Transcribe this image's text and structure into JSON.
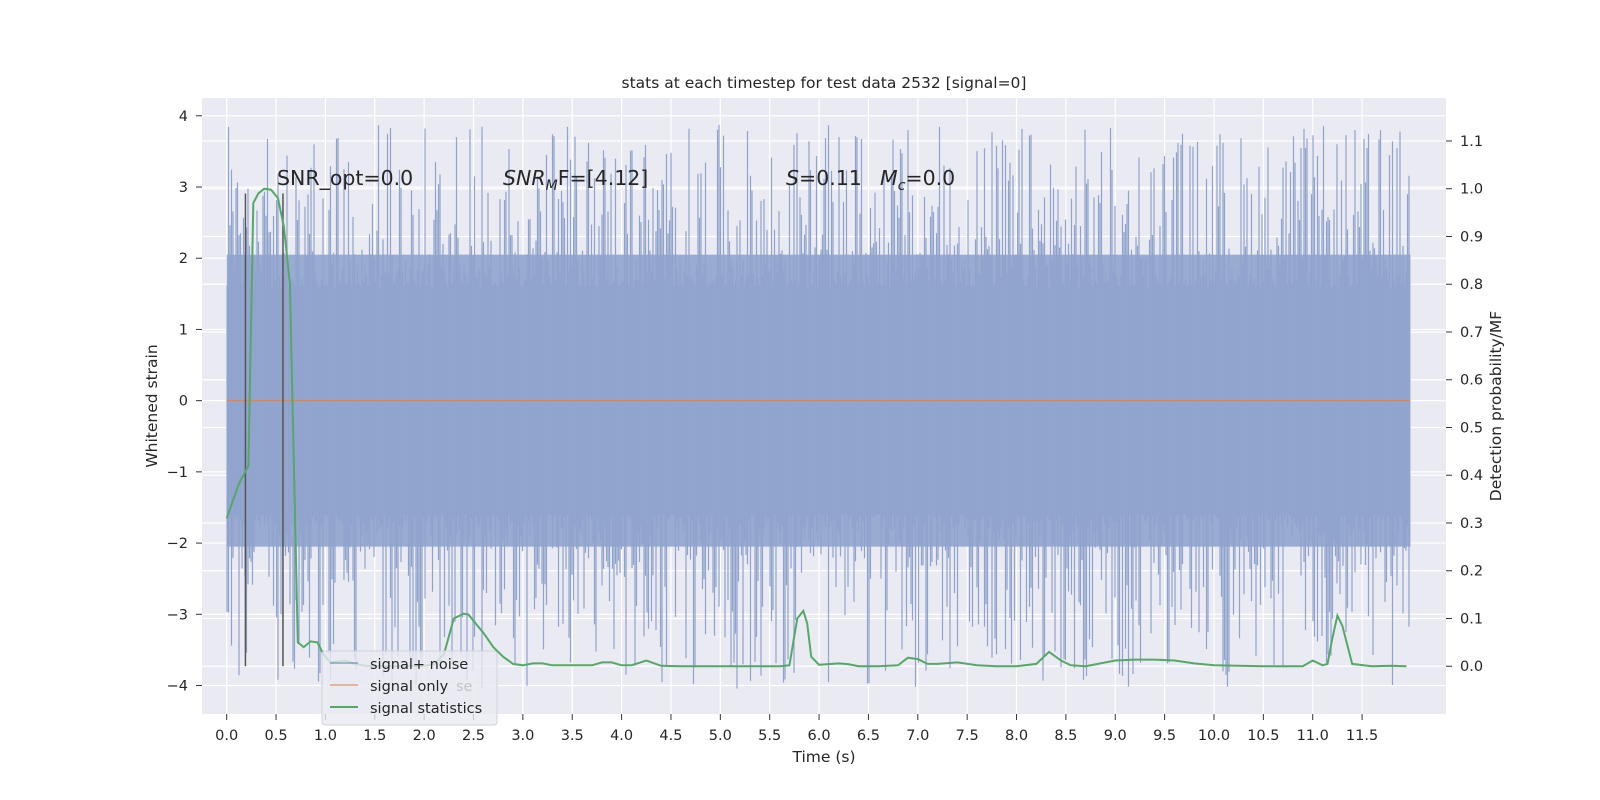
{
  "chart_data": {
    "type": "line",
    "title": "stats at each timestep for test data 2532 [signal=0]",
    "xlabel": "Time (s)",
    "ylabel_left": "Whitened strain",
    "ylabel_right": "Detection probability/MF",
    "xlim": [
      -0.25,
      12.35
    ],
    "ylim_left": [
      -4.4,
      4.25
    ],
    "ylim_right": [
      -0.1,
      1.19
    ],
    "x_ticks": [
      "0.0",
      "0.5",
      "1.0",
      "1.5",
      "2.0",
      "2.5",
      "3.0",
      "3.5",
      "4.0",
      "4.5",
      "5.0",
      "5.5",
      "6.0",
      "6.5",
      "7.0",
      "7.5",
      "8.0",
      "8.5",
      "9.0",
      "9.5",
      "10.0",
      "10.5",
      "11.0",
      "11.5"
    ],
    "x_tick_values": [
      0,
      0.5,
      1,
      1.5,
      2,
      2.5,
      3,
      3.5,
      4,
      4.5,
      5,
      5.5,
      6,
      6.5,
      7,
      7.5,
      8,
      8.5,
      9,
      9.5,
      10,
      10.5,
      11,
      11.5
    ],
    "y_ticks_left": [
      -4,
      -3,
      -2,
      -1,
      0,
      1,
      2,
      3,
      4
    ],
    "y_ticks_right": [
      "0.0",
      "0.1",
      "0.2",
      "0.3",
      "0.4",
      "0.5",
      "0.6",
      "0.7",
      "0.8",
      "0.9",
      "1.0",
      "1.1"
    ],
    "y_tick_values_right": [
      0,
      0.1,
      0.2,
      0.3,
      0.4,
      0.5,
      0.6,
      0.7,
      0.8,
      0.9,
      1.0,
      1.1
    ],
    "grid": true,
    "background": "#eaeaf2",
    "legend_position": "lower-left",
    "legend": [
      {
        "label": "signal+ noise",
        "color": "#4c72b0"
      },
      {
        "label": "signal only",
        "color": "#dd8452"
      },
      {
        "label": "signal statistics",
        "color": "#55a868"
      }
    ],
    "legend_ghost_text": "se",
    "annotations": {
      "snr_opt": "SNR_opt=0.0",
      "snr_mf_base": "SNR",
      "snr_mf_sub": "M",
      "snr_mf_rest": "F=[4.12]",
      "s_label": "S",
      "s_value": "=0.11",
      "mc_label": "M",
      "mc_sub": "c",
      "mc_value": "=0.0"
    },
    "vertical_markers_x": [
      0.19,
      0.57
    ],
    "series": [
      {
        "name": "signal+ noise",
        "kind": "noise",
        "x_range": [
          0,
          11.99
        ],
        "body_range": [
          -2.05,
          2.05
        ],
        "peak_max": 3.88,
        "peak_min": -4.07,
        "color": "#4c72b0"
      },
      {
        "name": "signal only",
        "kind": "line",
        "x": [
          0,
          11.99
        ],
        "y": [
          0,
          0
        ],
        "color": "#dd8452"
      },
      {
        "name": "signal statistics",
        "kind": "line",
        "axis": "right",
        "color": "#55a868",
        "x": [
          0,
          0.12,
          0.22,
          0.27,
          0.32,
          0.38,
          0.45,
          0.52,
          0.58,
          0.64,
          0.72,
          0.78,
          0.85,
          0.92,
          0.98,
          1.05,
          1.12,
          1.2,
          1.3,
          1.4,
          1.5,
          1.75,
          2.0,
          2.1,
          2.2,
          2.3,
          2.4,
          2.45,
          2.5,
          2.6,
          2.7,
          2.8,
          2.9,
          3.0,
          3.1,
          3.2,
          3.3,
          3.5,
          3.7,
          3.8,
          3.9,
          4.0,
          4.1,
          4.25,
          4.4,
          4.6,
          4.8,
          5.0,
          5.2,
          5.4,
          5.5,
          5.6,
          5.7,
          5.78,
          5.84,
          5.88,
          5.92,
          6.0,
          6.2,
          6.3,
          6.4,
          6.6,
          6.8,
          6.9,
          7.0,
          7.1,
          7.2,
          7.4,
          7.6,
          7.8,
          8.0,
          8.2,
          8.33,
          8.45,
          8.55,
          8.7,
          9.0,
          9.2,
          9.4,
          9.6,
          9.8,
          10.0,
          10.5,
          10.8,
          10.9,
          11.0,
          11.1,
          11.15,
          11.2,
          11.25,
          11.3,
          11.4,
          11.6,
          11.8,
          11.95
        ],
        "y": [
          0.31,
          0.38,
          0.42,
          0.97,
          0.99,
          1.0,
          0.998,
          0.98,
          0.92,
          0.8,
          0.05,
          0.04,
          0.052,
          0.05,
          0.025,
          0.008,
          0.01,
          0.012,
          0.005,
          0.001,
          0.0,
          0.0,
          0.001,
          0.004,
          0.025,
          0.1,
          0.11,
          0.108,
          0.095,
          0.07,
          0.04,
          0.02,
          0.005,
          0.002,
          0.006,
          0.006,
          0.002,
          0.002,
          0.002,
          0.008,
          0.008,
          0.002,
          0.002,
          0.012,
          0.001,
          0.0,
          0.0,
          0.0,
          0.0,
          0.0,
          0.0,
          0.0,
          0.002,
          0.1,
          0.116,
          0.09,
          0.02,
          0.003,
          0.006,
          0.004,
          0.0,
          0.0,
          0.002,
          0.018,
          0.015,
          0.005,
          0.005,
          0.008,
          0.002,
          0.0,
          0.0,
          0.005,
          0.03,
          0.012,
          0.002,
          0.0,
          0.012,
          0.014,
          0.014,
          0.012,
          0.006,
          0.002,
          0.0,
          0.0,
          0.0,
          0.012,
          0.002,
          0.005,
          0.06,
          0.106,
          0.085,
          0.005,
          0.0,
          0.001,
          0.0
        ]
      }
    ]
  }
}
